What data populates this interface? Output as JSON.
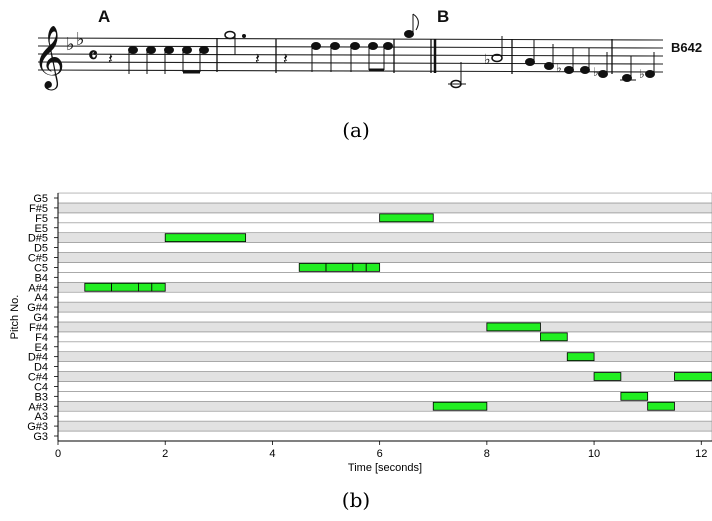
{
  "figure": {
    "panel_a_caption": "(a)",
    "panel_b_caption": "(b)"
  },
  "score": {
    "section_a_mark": "A",
    "section_b_mark": "B",
    "catalog_label": "B642",
    "key_signature": "two flats",
    "time_signature": "common time"
  },
  "chart_data": {
    "type": "piano-roll",
    "xlabel": "Time [seconds]",
    "ylabel": "Pitch No.",
    "xlim": [
      0,
      12.2
    ],
    "xticks": [
      0,
      2,
      4,
      6,
      8,
      10,
      12
    ],
    "pitches": [
      "G3",
      "G#3",
      "A3",
      "A#3",
      "B3",
      "C4",
      "C#4",
      "D4",
      "D#4",
      "E4",
      "F4",
      "F#4",
      "G4",
      "G#4",
      "A4",
      "A#4",
      "B4",
      "C5",
      "C#5",
      "D5",
      "D#5",
      "E5",
      "F5",
      "F#5",
      "G5"
    ],
    "shaded_pitches": [
      "G#3",
      "A#3",
      "C#4",
      "D#4",
      "F#4",
      "G#4",
      "A#4",
      "C#5",
      "D#5",
      "F#5"
    ],
    "note_color": "#22ee22",
    "notes": [
      {
        "pitch": "A#4",
        "start": 0.5,
        "end": 1.0
      },
      {
        "pitch": "A#4",
        "start": 1.0,
        "end": 1.5
      },
      {
        "pitch": "A#4",
        "start": 1.5,
        "end": 1.75
      },
      {
        "pitch": "A#4",
        "start": 1.75,
        "end": 2.0
      },
      {
        "pitch": "D#5",
        "start": 2.0,
        "end": 3.5
      },
      {
        "pitch": "C5",
        "start": 4.5,
        "end": 5.0
      },
      {
        "pitch": "C5",
        "start": 5.0,
        "end": 5.5
      },
      {
        "pitch": "C5",
        "start": 5.5,
        "end": 5.75
      },
      {
        "pitch": "C5",
        "start": 5.75,
        "end": 6.0
      },
      {
        "pitch": "F5",
        "start": 6.0,
        "end": 7.0
      },
      {
        "pitch": "A#3",
        "start": 7.0,
        "end": 8.0
      },
      {
        "pitch": "F#4",
        "start": 8.0,
        "end": 9.0
      },
      {
        "pitch": "F4",
        "start": 9.0,
        "end": 9.5
      },
      {
        "pitch": "D#4",
        "start": 9.5,
        "end": 10.0
      },
      {
        "pitch": "C#4",
        "start": 10.0,
        "end": 10.5
      },
      {
        "pitch": "B3",
        "start": 10.5,
        "end": 11.0
      },
      {
        "pitch": "A#3",
        "start": 11.0,
        "end": 11.5
      },
      {
        "pitch": "C#4",
        "start": 11.5,
        "end": 12.2
      }
    ]
  }
}
